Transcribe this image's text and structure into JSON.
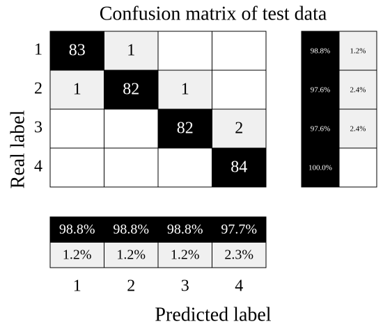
{
  "chart_data": {
    "type": "confusion_matrix",
    "title": "Confusion matrix of test data",
    "x_label": "Predicted label",
    "y_label": "Real label",
    "categories": [
      "1",
      "2",
      "3",
      "4"
    ],
    "matrix": [
      [
        83,
        1,
        null,
        null
      ],
      [
        1,
        82,
        1,
        null
      ],
      [
        null,
        null,
        82,
        2
      ],
      [
        null,
        null,
        null,
        84
      ]
    ],
    "row_summary": {
      "values": [
        [
          98.8,
          1.2
        ],
        [
          97.6,
          2.4
        ],
        [
          97.6,
          2.4
        ],
        [
          100.0,
          null
        ]
      ],
      "value_labels": [
        [
          "98.8%",
          "1.2%"
        ],
        [
          "97.6%",
          "2.4%"
        ],
        [
          "97.6%",
          "2.4%"
        ],
        [
          "100.0%",
          null
        ]
      ]
    },
    "column_summary": {
      "values": [
        [
          98.8,
          98.8,
          98.8,
          97.7
        ],
        [
          1.2,
          1.2,
          1.2,
          2.3
        ]
      ],
      "value_labels": [
        [
          "98.8%",
          "98.8%",
          "98.8%",
          "97.7%"
        ],
        [
          "1.2%",
          "1.2%",
          "1.2%",
          "2.3%"
        ]
      ]
    },
    "colors": {
      "correct": "#000000",
      "wrong": "#f0f0f0",
      "empty": "#ffffff"
    }
  }
}
